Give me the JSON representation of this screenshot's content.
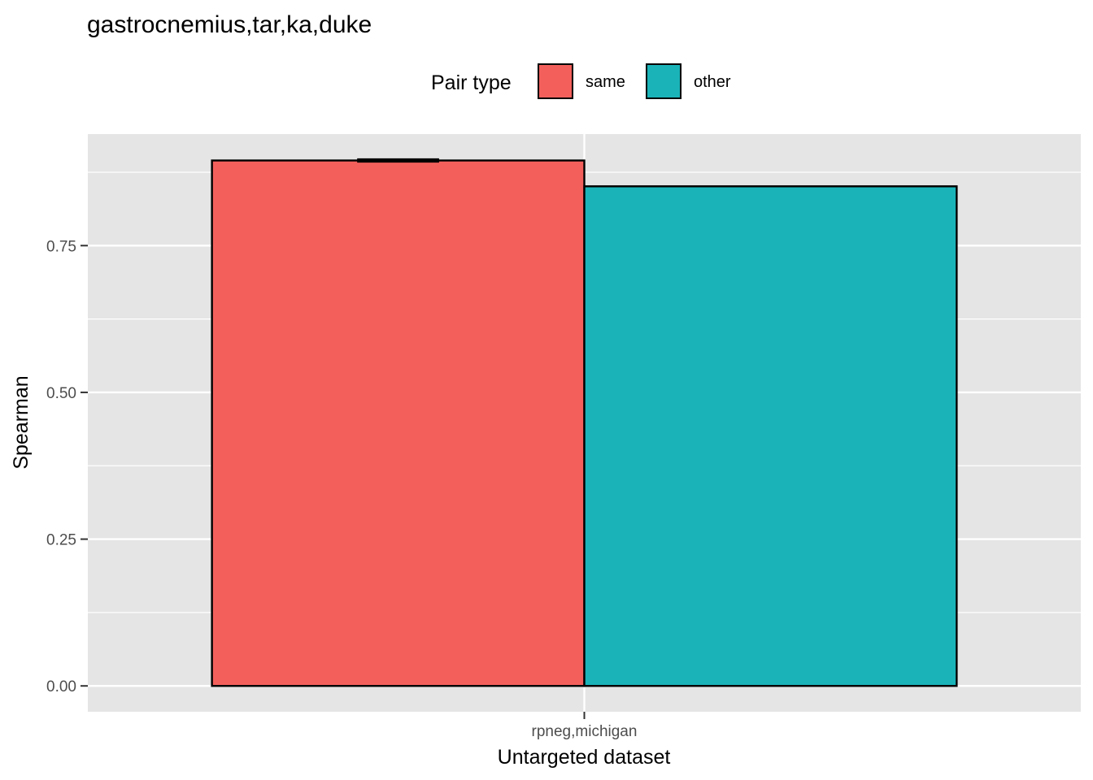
{
  "chart_data": {
    "type": "bar",
    "title": "gastrocnemius,tar,ka,duke",
    "xlabel": "Untargeted dataset",
    "ylabel": "Spearman",
    "categories": [
      "rpneg,michigan"
    ],
    "legend": {
      "title": "Pair type",
      "placement": "top",
      "entries": [
        {
          "label": "same",
          "color": "#F3605C"
        },
        {
          "label": "other",
          "color": "#1AB3B8"
        }
      ]
    },
    "series": [
      {
        "name": "same",
        "color": "#F3605C",
        "values": [
          0.895
        ],
        "error": [
          0.002
        ]
      },
      {
        "name": "other",
        "color": "#1AB3B8",
        "values": [
          0.851
        ]
      }
    ],
    "ylim": [
      -0.044,
      0.94
    ],
    "yticks": [
      0.0,
      0.25,
      0.5,
      0.75
    ],
    "ytick_labels": [
      "0.00",
      "0.25",
      "0.50",
      "0.75"
    ],
    "grid": true,
    "panel_background": "#E5E5E5"
  }
}
